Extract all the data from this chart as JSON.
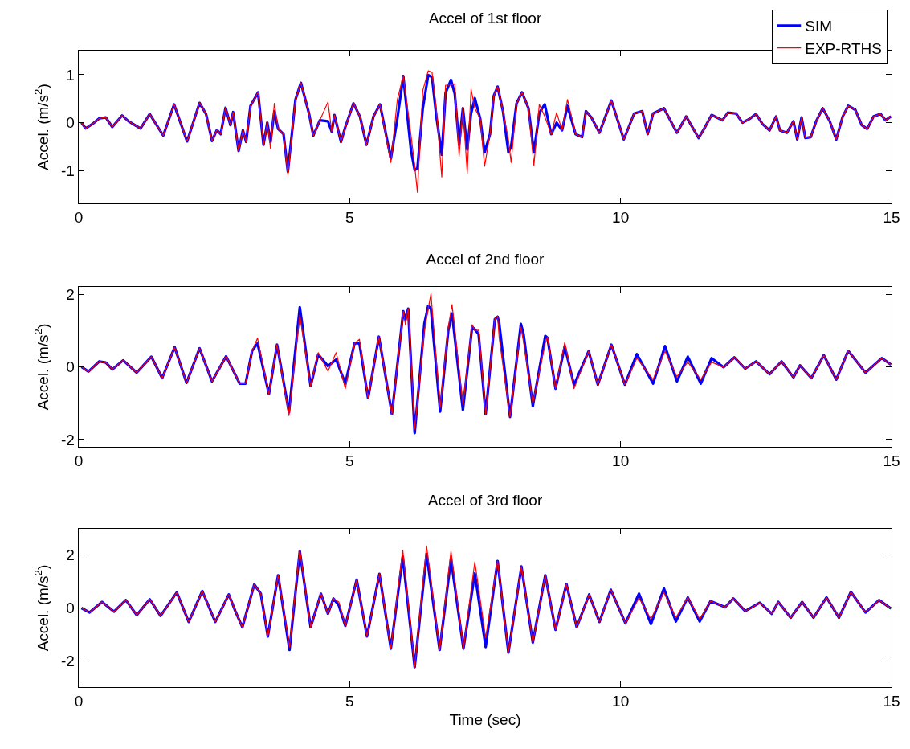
{
  "chart_data": [
    {
      "type": "line",
      "title": "Accel of 1st floor",
      "ylabel": "Accel. (m/s$^{2}$)",
      "xlim": [
        0,
        15
      ],
      "xticks": [
        0,
        5,
        10,
        15
      ],
      "ylim": [
        -1.68,
        1.5
      ],
      "yticks": [
        -1,
        0,
        1
      ],
      "grid": false,
      "legend": "top right",
      "tick_labels": "xy",
      "x": [
        0.05,
        0.13,
        0.25,
        0.38,
        0.5,
        0.62,
        0.8,
        0.92,
        1.14,
        1.31,
        1.56,
        1.76,
        2.0,
        2.23,
        2.35,
        2.46,
        2.55,
        2.62,
        2.71,
        2.8,
        2.85,
        2.95,
        3.03,
        3.09,
        3.17,
        3.31,
        3.41,
        3.48,
        3.54,
        3.61,
        3.68,
        3.78,
        3.86,
        4.0,
        4.1,
        4.25,
        4.33,
        4.45,
        4.6,
        4.67,
        4.72,
        4.84,
        4.92,
        5.07,
        5.19,
        5.31,
        5.44,
        5.56,
        5.76,
        5.88,
        5.99,
        6.13,
        6.2,
        6.25,
        6.35,
        6.45,
        6.52,
        6.6,
        6.7,
        6.77,
        6.87,
        6.94,
        7.02,
        7.09,
        7.17,
        7.24,
        7.31,
        7.41,
        7.49,
        7.59,
        7.66,
        7.73,
        7.83,
        7.93,
        7.98,
        8.08,
        8.18,
        8.3,
        8.4,
        8.5,
        8.6,
        8.72,
        8.82,
        8.92,
        9.02,
        9.17,
        9.29,
        9.36,
        9.46,
        9.61,
        9.83,
        10.06,
        10.25,
        10.4,
        10.5,
        10.6,
        10.8,
        11.04,
        11.21,
        11.44,
        11.54,
        11.68,
        11.88,
        11.98,
        12.13,
        12.25,
        12.38,
        12.5,
        12.62,
        12.75,
        12.87,
        12.94,
        13.07,
        13.19,
        13.26,
        13.34,
        13.41,
        13.51,
        13.61,
        13.73,
        13.86,
        13.98,
        14.1,
        14.2,
        14.33,
        14.45,
        14.55,
        14.67,
        14.8,
        14.89,
        14.99
      ],
      "series": [
        {
          "name": "SIM",
          "color": "#0000ff",
          "values": [
            0,
            -0.12,
            -0.03,
            0.09,
            0.11,
            -0.09,
            0.15,
            0.03,
            -0.12,
            0.18,
            -0.27,
            0.38,
            -0.39,
            0.41,
            0.18,
            -0.38,
            -0.15,
            -0.24,
            0.31,
            -0.05,
            0.22,
            -0.59,
            -0.16,
            -0.4,
            0.35,
            0.63,
            -0.46,
            0.0,
            -0.4,
            0.24,
            -0.13,
            -0.24,
            -1.02,
            0.48,
            0.83,
            0.19,
            -0.27,
            0.05,
            0.03,
            -0.19,
            0.16,
            -0.4,
            -0.09,
            0.4,
            0.13,
            -0.46,
            0.13,
            0.38,
            -0.75,
            0.08,
            0.97,
            -0.56,
            -0.99,
            -0.95,
            0.3,
            0.99,
            0.95,
            0.13,
            -0.67,
            0.62,
            0.89,
            0.6,
            -0.46,
            0.3,
            -0.56,
            0.19,
            0.51,
            0.08,
            -0.62,
            -0.24,
            0.56,
            0.75,
            0.24,
            -0.62,
            -0.5,
            0.4,
            0.63,
            0.3,
            -0.62,
            0.2,
            0.38,
            -0.24,
            0.0,
            -0.16,
            0.35,
            -0.24,
            -0.3,
            0.24,
            0.11,
            -0.21,
            0.46,
            -0.35,
            0.19,
            0.24,
            -0.24,
            0.19,
            0.3,
            -0.21,
            0.13,
            -0.32,
            -0.13,
            0.16,
            0.05,
            0.21,
            0.19,
            0.0,
            0.08,
            0.18,
            -0.03,
            -0.16,
            0.13,
            -0.16,
            -0.21,
            0.03,
            -0.35,
            0.11,
            -0.32,
            -0.3,
            0.03,
            0.3,
            0.03,
            -0.35,
            0.13,
            0.35,
            0.27,
            -0.05,
            -0.13,
            0.13,
            0.18,
            0.05,
            0.13
          ]
        },
        {
          "name": "EXP-RTHS",
          "color": "#ff0000",
          "values": [
            0,
            -0.12,
            -0.03,
            0.09,
            0.11,
            -0.09,
            0.15,
            0.03,
            -0.12,
            0.18,
            -0.27,
            0.38,
            -0.39,
            0.41,
            0.18,
            -0.38,
            -0.15,
            -0.24,
            0.31,
            -0.05,
            0.22,
            -0.59,
            -0.16,
            -0.4,
            0.35,
            0.63,
            -0.46,
            0.0,
            -0.54,
            0.4,
            -0.13,
            -0.24,
            -1.08,
            0.48,
            0.83,
            0.19,
            -0.27,
            0.05,
            0.43,
            -0.19,
            0.16,
            -0.4,
            -0.09,
            0.4,
            0.13,
            -0.46,
            0.13,
            0.38,
            -0.83,
            0.48,
            0.97,
            -0.24,
            -0.89,
            -1.45,
            0.67,
            1.08,
            1.05,
            0.27,
            -1.13,
            0.78,
            0.78,
            0.81,
            -0.7,
            0.3,
            -1.05,
            0.7,
            0.3,
            0.08,
            -0.91,
            -0.24,
            0.56,
            0.75,
            0.24,
            -0.35,
            -0.83,
            0.4,
            0.63,
            0.3,
            -0.89,
            0.38,
            0.13,
            -0.24,
            0.21,
            -0.16,
            0.48,
            -0.24,
            -0.3,
            0.24,
            0.11,
            -0.21,
            0.46,
            -0.35,
            0.19,
            0.24,
            -0.24,
            0.19,
            0.3,
            -0.21,
            0.13,
            -0.32,
            -0.13,
            0.16,
            0.05,
            0.21,
            0.19,
            0.0,
            0.08,
            0.18,
            -0.03,
            -0.16,
            0.13,
            -0.16,
            -0.21,
            0.03,
            -0.35,
            0.11,
            -0.32,
            -0.3,
            0.03,
            0.3,
            0.03,
            -0.35,
            0.13,
            0.35,
            0.27,
            -0.05,
            -0.13,
            0.13,
            0.18,
            0.05,
            0.13
          ]
        }
      ]
    },
    {
      "type": "line",
      "title": "Accel of 2nd floor",
      "ylabel": "Accel. (m/s$^{2}$)",
      "xlim": [
        0,
        15
      ],
      "xticks": [
        0,
        5,
        10,
        15
      ],
      "ylim": [
        -2.2,
        2.2
      ],
      "yticks": [
        -2,
        0,
        2
      ],
      "grid": false,
      "x": [
        0.05,
        0.18,
        0.38,
        0.5,
        0.62,
        0.82,
        1.07,
        1.34,
        1.54,
        1.77,
        1.99,
        2.23,
        2.46,
        2.72,
        2.97,
        3.08,
        3.2,
        3.3,
        3.51,
        3.66,
        3.88,
        4.08,
        4.28,
        4.42,
        4.6,
        4.75,
        4.92,
        5.09,
        5.18,
        5.34,
        5.54,
        5.78,
        5.99,
        6.03,
        6.08,
        6.2,
        6.38,
        6.45,
        6.5,
        6.67,
        6.82,
        6.89,
        7.09,
        7.26,
        7.31,
        7.38,
        7.51,
        7.68,
        7.73,
        7.76,
        7.96,
        8.16,
        8.21,
        8.38,
        8.61,
        8.65,
        8.8,
        8.97,
        9.14,
        9.41,
        9.58,
        9.83,
        10.08,
        10.3,
        10.6,
        10.82,
        11.04,
        11.24,
        11.48,
        11.68,
        11.9,
        12.1,
        12.3,
        12.5,
        12.75,
        12.97,
        13.19,
        13.31,
        13.52,
        13.75,
        13.98,
        14.2,
        14.52,
        14.82,
        14.99
      ],
      "series": [
        {
          "color": "#0000ff",
          "values": [
            0,
            -0.13,
            0.15,
            0.12,
            -0.07,
            0.18,
            -0.16,
            0.28,
            -0.31,
            0.54,
            -0.44,
            0.51,
            -0.4,
            0.29,
            -0.46,
            -0.46,
            0.44,
            0.65,
            -0.75,
            0.61,
            -1.25,
            1.64,
            -0.53,
            0.34,
            0.02,
            0.2,
            -0.46,
            0.65,
            0.65,
            -0.86,
            0.83,
            -1.3,
            1.53,
            1.3,
            1.6,
            -1.82,
            1.2,
            1.68,
            1.6,
            -1.23,
            1.0,
            1.47,
            -1.19,
            1.1,
            1.03,
            0.9,
            -1.3,
            1.31,
            1.38,
            1.2,
            -1.38,
            1.18,
            0.9,
            -1.08,
            0.85,
            0.8,
            -0.6,
            0.56,
            -0.5,
            0.43,
            -0.49,
            0.61,
            -0.49,
            0.35,
            -0.46,
            0.57,
            -0.4,
            0.28,
            -0.46,
            0.24,
            -0.01,
            0.26,
            -0.05,
            0.15,
            -0.2,
            0.15,
            -0.29,
            0.04,
            -0.31,
            0.32,
            -0.35,
            0.44,
            -0.16,
            0.24,
            0.06
          ]
        },
        {
          "color": "#ff0000",
          "values": [
            0,
            -0.13,
            0.15,
            0.12,
            -0.07,
            0.18,
            -0.16,
            0.28,
            -0.31,
            0.54,
            -0.44,
            0.51,
            -0.4,
            0.29,
            -0.46,
            -0.46,
            0.44,
            0.79,
            -0.75,
            0.61,
            -1.34,
            1.42,
            -0.53,
            0.39,
            -0.12,
            0.39,
            -0.6,
            0.65,
            0.76,
            -0.86,
            0.83,
            -1.3,
            1.53,
            1.16,
            1.6,
            -1.71,
            1.01,
            1.6,
            2.01,
            -1.12,
            1.09,
            1.71,
            -1.04,
            1.16,
            1.0,
            1.01,
            -1.3,
            1.31,
            1.4,
            0.79,
            -1.38,
            1.09,
            0.68,
            -1.0,
            0.65,
            0.83,
            -0.6,
            0.68,
            -0.6,
            0.43,
            -0.49,
            0.61,
            -0.49,
            0.24,
            -0.35,
            0.43,
            -0.27,
            0.13,
            -0.35,
            0.13,
            -0.01,
            0.26,
            -0.05,
            0.15,
            -0.2,
            0.15,
            -0.29,
            0.04,
            -0.31,
            0.32,
            -0.35,
            0.44,
            -0.16,
            0.24,
            0.06
          ]
        }
      ]
    },
    {
      "type": "line",
      "title": "Accel of 3rd floor",
      "xlabel": "Time (sec)",
      "ylabel": "Accel. (m/s$^{2}$)",
      "xlim": [
        0,
        15
      ],
      "xticks": [
        0,
        5,
        10,
        15
      ],
      "ylim": [
        -3,
        3
      ],
      "yticks": [
        -2,
        0,
        2
      ],
      "grid": false,
      "x": [
        0.05,
        0.2,
        0.43,
        0.65,
        0.87,
        1.07,
        1.31,
        1.51,
        1.81,
        2.03,
        2.28,
        2.52,
        2.77,
        2.89,
        3.02,
        3.24,
        3.36,
        3.49,
        3.68,
        3.89,
        4.08,
        4.28,
        4.47,
        4.6,
        4.7,
        4.8,
        4.92,
        5.13,
        5.32,
        5.55,
        5.76,
        5.98,
        6.2,
        6.42,
        6.66,
        6.87,
        7.1,
        7.31,
        7.51,
        7.73,
        7.93,
        8.17,
        8.38,
        8.61,
        8.8,
        9.0,
        9.19,
        9.42,
        9.61,
        9.82,
        10.09,
        10.34,
        10.56,
        10.8,
        11.02,
        11.24,
        11.46,
        11.66,
        11.93,
        12.08,
        12.3,
        12.57,
        12.79,
        12.91,
        13.14,
        13.35,
        13.56,
        13.8,
        14.03,
        14.25,
        14.52,
        14.77,
        14.99
      ],
      "series": [
        {
          "color": "#0000ff",
          "values": [
            0,
            -0.17,
            0.23,
            -0.14,
            0.3,
            -0.27,
            0.33,
            -0.3,
            0.59,
            -0.53,
            0.64,
            -0.53,
            0.51,
            -0.12,
            -0.73,
            0.89,
            0.54,
            -1.08,
            1.24,
            -1.59,
            2.15,
            -0.73,
            0.54,
            -0.22,
            0.36,
            0.1,
            -0.68,
            1.07,
            -1.08,
            1.29,
            -1.54,
            1.95,
            -2.24,
            2.05,
            -1.59,
            1.85,
            -1.54,
            1.31,
            -1.48,
            1.78,
            -1.69,
            1.57,
            -1.31,
            1.24,
            -0.83,
            0.91,
            -0.73,
            0.51,
            -0.53,
            0.69,
            -0.58,
            0.54,
            -0.61,
            0.74,
            -0.51,
            0.4,
            -0.51,
            0.26,
            0.03,
            0.36,
            -0.12,
            0.2,
            -0.22,
            0.23,
            -0.37,
            0.23,
            -0.37,
            0.4,
            -0.37,
            0.61,
            -0.17,
            0.3,
            -0.02
          ]
        },
        {
          "color": "#ff0000",
          "values": [
            0,
            -0.17,
            0.23,
            -0.14,
            0.3,
            -0.27,
            0.33,
            -0.3,
            0.59,
            -0.53,
            0.64,
            -0.53,
            0.51,
            -0.12,
            -0.73,
            0.89,
            0.54,
            -1.08,
            1.24,
            -1.48,
            2.2,
            -0.73,
            0.54,
            -0.22,
            0.36,
            0.23,
            -0.68,
            1.07,
            -1.08,
            1.29,
            -1.54,
            2.2,
            -2.24,
            2.35,
            -1.59,
            2.15,
            -1.54,
            1.75,
            -1.13,
            1.78,
            -1.69,
            1.57,
            -1.31,
            1.24,
            -0.83,
            0.91,
            -0.73,
            0.51,
            -0.53,
            0.69,
            -0.58,
            0.38,
            -0.42,
            0.59,
            -0.37,
            0.4,
            -0.42,
            0.26,
            0.03,
            0.36,
            -0.12,
            0.2,
            -0.22,
            0.23,
            -0.37,
            0.23,
            -0.37,
            0.4,
            -0.37,
            0.61,
            -0.17,
            0.3,
            -0.02
          ]
        }
      ]
    }
  ]
}
